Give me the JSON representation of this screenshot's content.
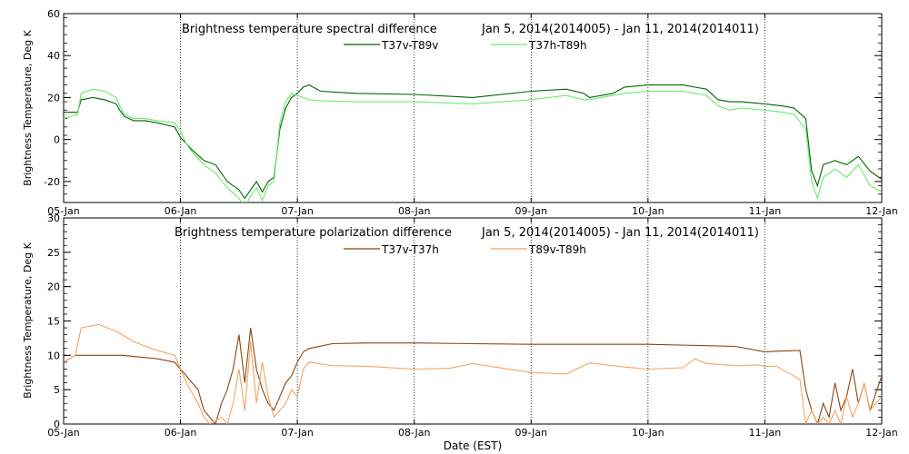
{
  "x_axis_label": "Date (EST)",
  "chart_data": [
    {
      "type": "line",
      "title": "Brightness temperature spectral difference",
      "date_range": "Jan  5, 2014(2014005) - Jan 11, 2014(2014011)",
      "ylabel": "Brightness Temperature, Deg K",
      "xlabel": "",
      "x_ticks": [
        "05-Jan",
        "06-Jan",
        "07-Jan",
        "08-Jan",
        "09-Jan",
        "10-Jan",
        "11-Jan",
        "12-Jan"
      ],
      "y_ticks": [
        "-20",
        "0",
        "20",
        "40",
        "60"
      ],
      "xlim": [
        0,
        7
      ],
      "ylim": [
        -30,
        60
      ],
      "grid": "vertical dotted lines at each day",
      "legend_position": "top-center",
      "x_unit": "days since 05-Jan 00:00 EST",
      "series": [
        {
          "name": "T37v-T89v",
          "color": "#006400",
          "x": [
            0,
            0.12,
            0.15,
            0.25,
            0.35,
            0.45,
            0.48,
            0.52,
            0.6,
            0.7,
            0.8,
            0.95,
            1.0,
            1.05,
            1.1,
            1.2,
            1.3,
            1.4,
            1.5,
            1.55,
            1.6,
            1.65,
            1.7,
            1.75,
            1.8,
            1.85,
            1.9,
            1.95,
            2.0,
            2.05,
            2.1,
            2.2,
            2.5,
            3.0,
            3.5,
            4.0,
            4.3,
            4.45,
            4.5,
            4.7,
            4.8,
            5.0,
            5.3,
            5.5,
            5.6,
            5.7,
            5.8,
            6.0,
            6.15,
            6.25,
            6.35,
            6.4,
            6.45,
            6.5,
            6.6,
            6.7,
            6.8,
            6.9,
            7.0
          ],
          "y": [
            13,
            13,
            19,
            20,
            19,
            17,
            14,
            11,
            9,
            9,
            8,
            6,
            1,
            -2,
            -5,
            -10,
            -12,
            -20,
            -24,
            -28,
            -24,
            -20,
            -25,
            -20,
            -18,
            5,
            15,
            20,
            22,
            25,
            26,
            23,
            22,
            21.5,
            20,
            23,
            24,
            22,
            20,
            22,
            25,
            26,
            26,
            24,
            19,
            18,
            18,
            17,
            16,
            15,
            10,
            -15,
            -22,
            -12,
            -10,
            -12,
            -8,
            -15,
            -19
          ]
        },
        {
          "name": "T37h-T89h",
          "color": "#66ee66",
          "x": [
            0,
            0.12,
            0.15,
            0.25,
            0.35,
            0.45,
            0.48,
            0.52,
            0.6,
            0.7,
            0.8,
            0.95,
            1.0,
            1.05,
            1.1,
            1.2,
            1.3,
            1.4,
            1.5,
            1.55,
            1.6,
            1.65,
            1.7,
            1.75,
            1.8,
            1.85,
            1.9,
            1.95,
            2.0,
            2.05,
            2.1,
            2.2,
            2.5,
            3.0,
            3.5,
            4.0,
            4.3,
            4.45,
            4.5,
            4.7,
            4.8,
            5.0,
            5.3,
            5.5,
            5.6,
            5.7,
            5.8,
            6.0,
            6.15,
            6.25,
            6.35,
            6.4,
            6.45,
            6.5,
            6.6,
            6.7,
            6.8,
            6.9,
            7.0
          ],
          "y": [
            10,
            12,
            22,
            24,
            23,
            20,
            16,
            12,
            10,
            10,
            9,
            8,
            4,
            -2,
            -6,
            -12,
            -16,
            -23,
            -28,
            -32,
            -27,
            -23,
            -29,
            -22,
            -20,
            8,
            18,
            22,
            21,
            20,
            19,
            18.5,
            18,
            18,
            17,
            19,
            21,
            19,
            19,
            21,
            22,
            23,
            23,
            21,
            16,
            14,
            15,
            14,
            13,
            12,
            5,
            -20,
            -28,
            -18,
            -14,
            -18,
            -12,
            -22,
            -25
          ]
        }
      ]
    },
    {
      "type": "line",
      "title": "Brightness temperature polarization difference",
      "date_range": "Jan  5, 2014(2014005) - Jan 11, 2014(2014011)",
      "ylabel": "Brightness Temperature, Deg K",
      "xlabel": "Date (EST)",
      "x_ticks": [
        "05-Jan",
        "06-Jan",
        "07-Jan",
        "08-Jan",
        "09-Jan",
        "10-Jan",
        "11-Jan",
        "12-Jan"
      ],
      "y_ticks": [
        "0",
        "5",
        "10",
        "15",
        "20",
        "25",
        "30"
      ],
      "xlim": [
        0,
        7
      ],
      "ylim": [
        0,
        30
      ],
      "grid": "vertical dotted lines at each day",
      "legend_position": "top-center",
      "x_unit": "days since 05-Jan 00:00 EST",
      "series": [
        {
          "name": "T37v-T37h",
          "color": "#8b4513",
          "x": [
            0,
            0.1,
            0.2,
            0.5,
            0.8,
            0.95,
            1.0,
            1.05,
            1.15,
            1.2,
            1.25,
            1.3,
            1.35,
            1.4,
            1.45,
            1.5,
            1.55,
            1.6,
            1.65,
            1.7,
            1.75,
            1.8,
            1.85,
            1.9,
            1.95,
            2.0,
            2.05,
            2.1,
            2.3,
            2.6,
            3.0,
            3.5,
            4.0,
            4.5,
            5.0,
            5.5,
            5.75,
            6.0,
            6.1,
            6.3,
            6.35,
            6.4,
            6.45,
            6.5,
            6.55,
            6.6,
            6.65,
            6.7,
            6.75,
            6.8,
            6.85,
            6.9,
            7.0
          ],
          "y": [
            9,
            10,
            10,
            10,
            9.5,
            9,
            8,
            7,
            5,
            2,
            1,
            0,
            3,
            5,
            8,
            13,
            6,
            14,
            8,
            5,
            3,
            2,
            4,
            6,
            7,
            9,
            10.5,
            11,
            11.7,
            11.8,
            11.8,
            11.7,
            11.6,
            11.6,
            11.6,
            11.4,
            11.3,
            10.5,
            10.6,
            10.7,
            5,
            2,
            0,
            3,
            1,
            6,
            2,
            4,
            8,
            3,
            6,
            2,
            7
          ]
        },
        {
          "name": "T89v-T89h",
          "color": "#f4a460",
          "x": [
            0,
            0.1,
            0.15,
            0.3,
            0.45,
            0.6,
            0.75,
            0.95,
            1.0,
            1.05,
            1.15,
            1.2,
            1.25,
            1.3,
            1.35,
            1.4,
            1.45,
            1.5,
            1.55,
            1.6,
            1.65,
            1.7,
            1.75,
            1.8,
            1.85,
            1.9,
            1.95,
            2.0,
            2.05,
            2.1,
            2.3,
            2.6,
            3.0,
            3.3,
            3.5,
            4.0,
            4.3,
            4.5,
            4.8,
            5.0,
            5.3,
            5.4,
            5.5,
            5.75,
            5.95,
            6.0,
            6.1,
            6.3,
            6.35,
            6.4,
            6.45,
            6.5,
            6.55,
            6.6,
            6.65,
            6.7,
            6.75,
            6.8,
            6.85,
            6.9,
            7.0
          ],
          "y": [
            9,
            10,
            14,
            14.5,
            13.5,
            12,
            11,
            10,
            8,
            6,
            3,
            1,
            0,
            0.5,
            1,
            0,
            3,
            8,
            2,
            12,
            3,
            9,
            4,
            1,
            2,
            3,
            5,
            4,
            8,
            9,
            8.5,
            8.4,
            8.0,
            8.1,
            8.8,
            7.5,
            7.3,
            8.9,
            8.3,
            8.0,
            8.2,
            9.5,
            8.8,
            8.5,
            8.6,
            8.4,
            8.4,
            6.5,
            0,
            2,
            0,
            1,
            0,
            2,
            0,
            4,
            1,
            3,
            6,
            2,
            4
          ]
        }
      ]
    }
  ]
}
